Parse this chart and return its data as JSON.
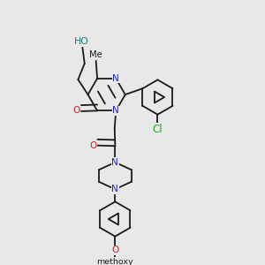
{
  "bg_color": "#e8e8e8",
  "bond_color": "#1a1a1a",
  "N_color": "#2020cc",
  "O_color": "#cc2020",
  "Cl_color": "#22aa22",
  "H_color": "#227777",
  "font_size": 7.5,
  "bond_width": 1.3,
  "dbo": 0.018,
  "figsize": [
    3.0,
    3.0
  ],
  "dpi": 100,
  "xlim": [
    0.0,
    1.0
  ],
  "ylim": [
    0.0,
    1.0
  ]
}
